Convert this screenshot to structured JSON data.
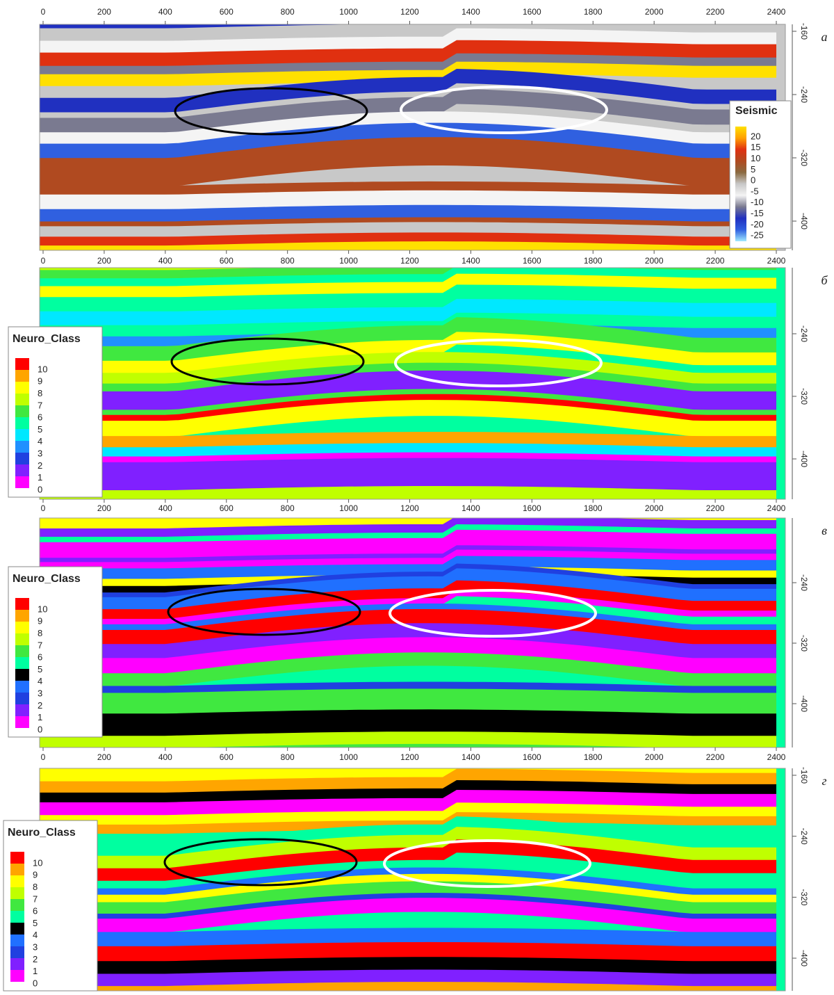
{
  "x_ticks": [
    0,
    200,
    400,
    600,
    800,
    1000,
    1200,
    1400,
    1600,
    1800,
    2000,
    2200,
    2400
  ],
  "neuro_legend": {
    "title": "Neuro_Class",
    "labels": [
      10,
      9,
      8,
      7,
      6,
      5,
      4,
      3,
      2,
      1,
      0
    ]
  },
  "panels": [
    {
      "label": "а",
      "y_ticks": [
        -160,
        -240,
        -320,
        -400
      ],
      "legend": {
        "title": "Seismic",
        "labels": [
          20,
          15,
          10,
          5,
          0,
          -5,
          -10,
          -15,
          -20,
          -25
        ]
      },
      "colors": [
        "#ffe000",
        "#ffa000",
        "#e03010",
        "#b04a20",
        "#8a6a40",
        "#c8c8c8",
        "#f4f4f4",
        "#7a7a90",
        "#2030c0",
        "#3060e0",
        "#a0e8ff"
      ]
    },
    {
      "label": "б",
      "y_ticks": [
        -240,
        -320,
        -400
      ],
      "colors": [
        "#ff0000",
        "#ffa500",
        "#ffff00",
        "#c0ff00",
        "#40e840",
        "#00ffa0",
        "#00e8ff",
        "#2090ff",
        "#2040e0",
        "#8020ff",
        "#ff00ff"
      ]
    },
    {
      "label": "в",
      "y_ticks": [
        -240,
        -320,
        -400
      ],
      "colors": [
        "#ff0000",
        "#ffa500",
        "#ffff00",
        "#c0ff00",
        "#40e840",
        "#00ffa0",
        "#000000",
        "#2070ff",
        "#2040e0",
        "#8020ff",
        "#ff00ff"
      ]
    },
    {
      "label": "г",
      "y_ticks": [
        -160,
        -240,
        -320,
        -400
      ],
      "colors": [
        "#ff0000",
        "#ffa500",
        "#ffff00",
        "#c0ff00",
        "#40e840",
        "#00ffa0",
        "#000000",
        "#2070ff",
        "#2040e0",
        "#8020ff",
        "#ff00ff"
      ]
    }
  ]
}
